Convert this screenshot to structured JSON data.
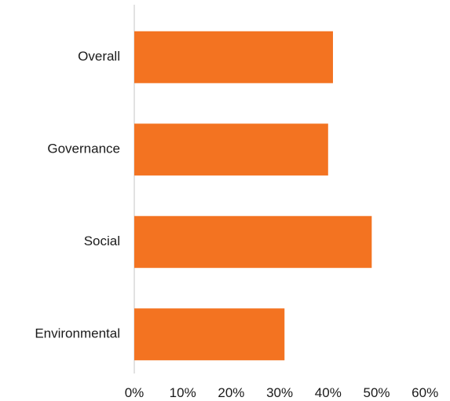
{
  "chart_data": {
    "type": "bar",
    "orientation": "horizontal",
    "categories": [
      "Overall",
      "Governance",
      "Social",
      "Environmental"
    ],
    "values": [
      41,
      40,
      49,
      31
    ],
    "unit": "%",
    "xlim": [
      0,
      60
    ],
    "x_ticks": [
      "0%",
      "10%",
      "20%",
      "30%",
      "40%",
      "50%",
      "60%"
    ],
    "grid": false,
    "legend": "none",
    "colors": {
      "bar": "#F37321",
      "axis": "#D9D9D9"
    }
  }
}
